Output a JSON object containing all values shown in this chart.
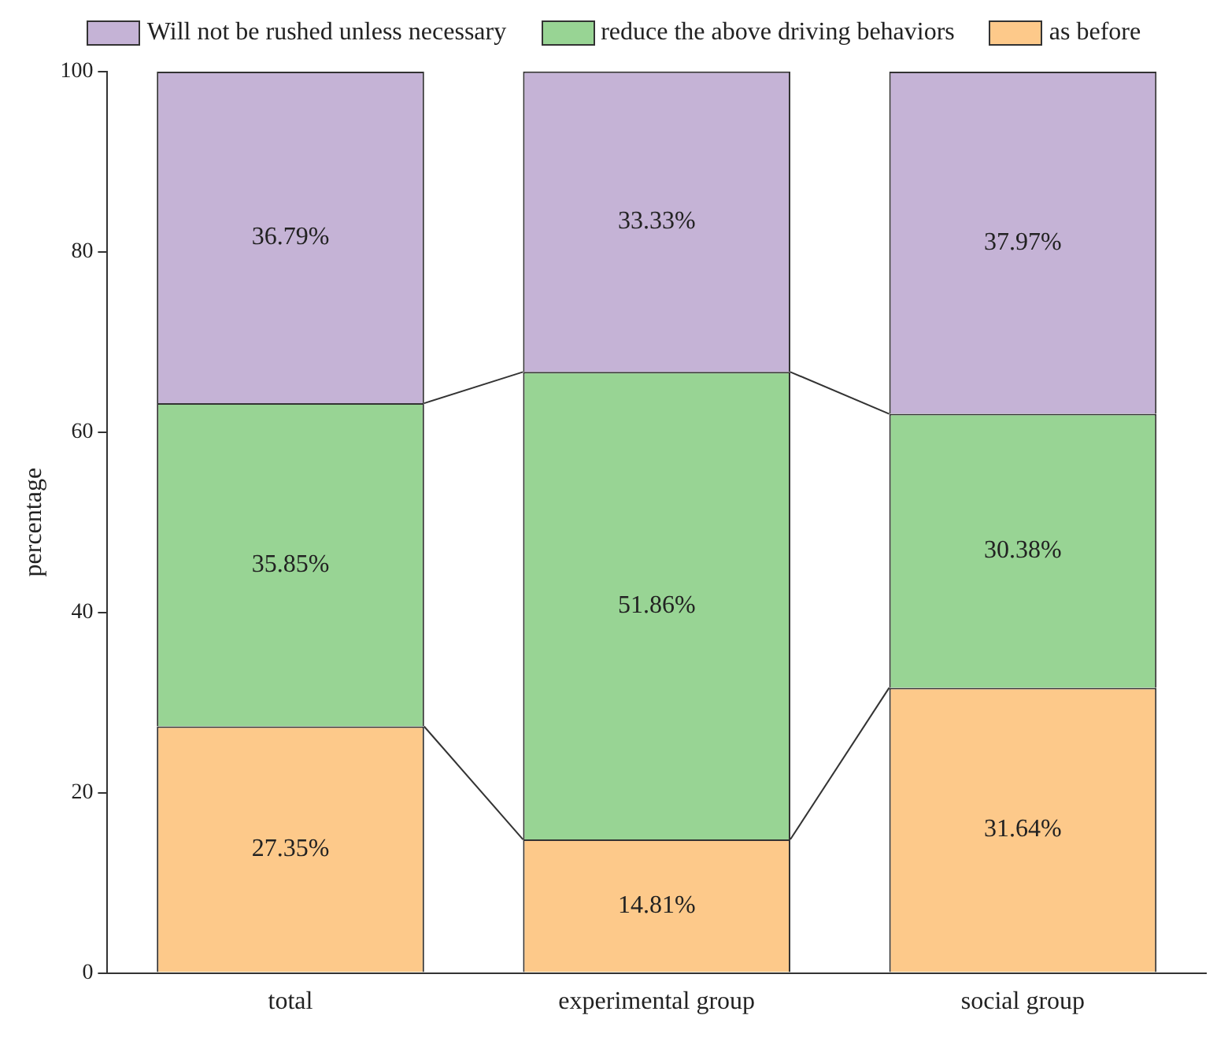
{
  "chart_data": {
    "type": "bar",
    "stacked": true,
    "ylabel": "percentage",
    "categories": [
      "total",
      "experimental group",
      "social group"
    ],
    "series": [
      {
        "name": "as before",
        "color": "#fdc98a",
        "values": [
          27.35,
          14.81,
          31.64
        ],
        "value_labels": [
          "27.35%",
          "14.81%",
          "31.64%"
        ]
      },
      {
        "name": "reduce the above driving behaviors",
        "color": "#98d494",
        "values": [
          35.85,
          51.86,
          30.38
        ],
        "value_labels": [
          "35.85%",
          "51.86%",
          "30.38%"
        ]
      },
      {
        "name": "Will not be rushed unless necessary",
        "color": "#c5b3d6",
        "values": [
          36.79,
          33.33,
          37.97
        ],
        "value_labels": [
          "36.79%",
          "33.33%",
          "37.97%"
        ]
      }
    ],
    "ylim": [
      0,
      100
    ],
    "yticks": [
      0,
      20,
      40,
      60,
      80,
      100
    ],
    "grid": false,
    "legend": "top"
  }
}
